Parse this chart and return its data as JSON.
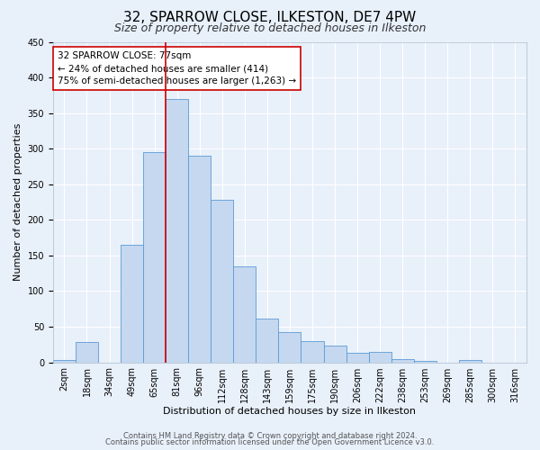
{
  "title": "32, SPARROW CLOSE, ILKESTON, DE7 4PW",
  "subtitle": "Size of property relative to detached houses in Ilkeston",
  "xlabel": "Distribution of detached houses by size in Ilkeston",
  "ylabel": "Number of detached properties",
  "bar_labels": [
    "2sqm",
    "18sqm",
    "34sqm",
    "49sqm",
    "65sqm",
    "81sqm",
    "96sqm",
    "112sqm",
    "128sqm",
    "143sqm",
    "159sqm",
    "175sqm",
    "190sqm",
    "206sqm",
    "222sqm",
    "238sqm",
    "253sqm",
    "269sqm",
    "285sqm",
    "300sqm",
    "316sqm"
  ],
  "bar_values": [
    3,
    28,
    0,
    165,
    295,
    370,
    290,
    228,
    135,
    62,
    43,
    30,
    24,
    13,
    15,
    5,
    2,
    0,
    3,
    0,
    0
  ],
  "bar_color": "#c5d8f0",
  "bar_edge_color": "#5b9bd5",
  "vline_color": "#cc0000",
  "vline_position": 4.5,
  "annotation_title": "32 SPARROW CLOSE: 77sqm",
  "annotation_line1": "← 24% of detached houses are smaller (414)",
  "annotation_line2": "75% of semi-detached houses are larger (1,263) →",
  "annotation_box_color": "#ffffff",
  "annotation_box_edge": "#cc0000",
  "ylim": [
    0,
    450
  ],
  "yticks": [
    0,
    50,
    100,
    150,
    200,
    250,
    300,
    350,
    400,
    450
  ],
  "footer_line1": "Contains HM Land Registry data © Crown copyright and database right 2024.",
  "footer_line2": "Contains public sector information licensed under the Open Government Licence v3.0.",
  "bg_color": "#e8f0fa",
  "plot_bg_color": "#e8f0fa",
  "grid_color": "#ffffff",
  "title_fontsize": 11,
  "subtitle_fontsize": 9,
  "axis_label_fontsize": 8,
  "tick_fontsize": 7,
  "annotation_fontsize": 7.5,
  "footer_fontsize": 6
}
